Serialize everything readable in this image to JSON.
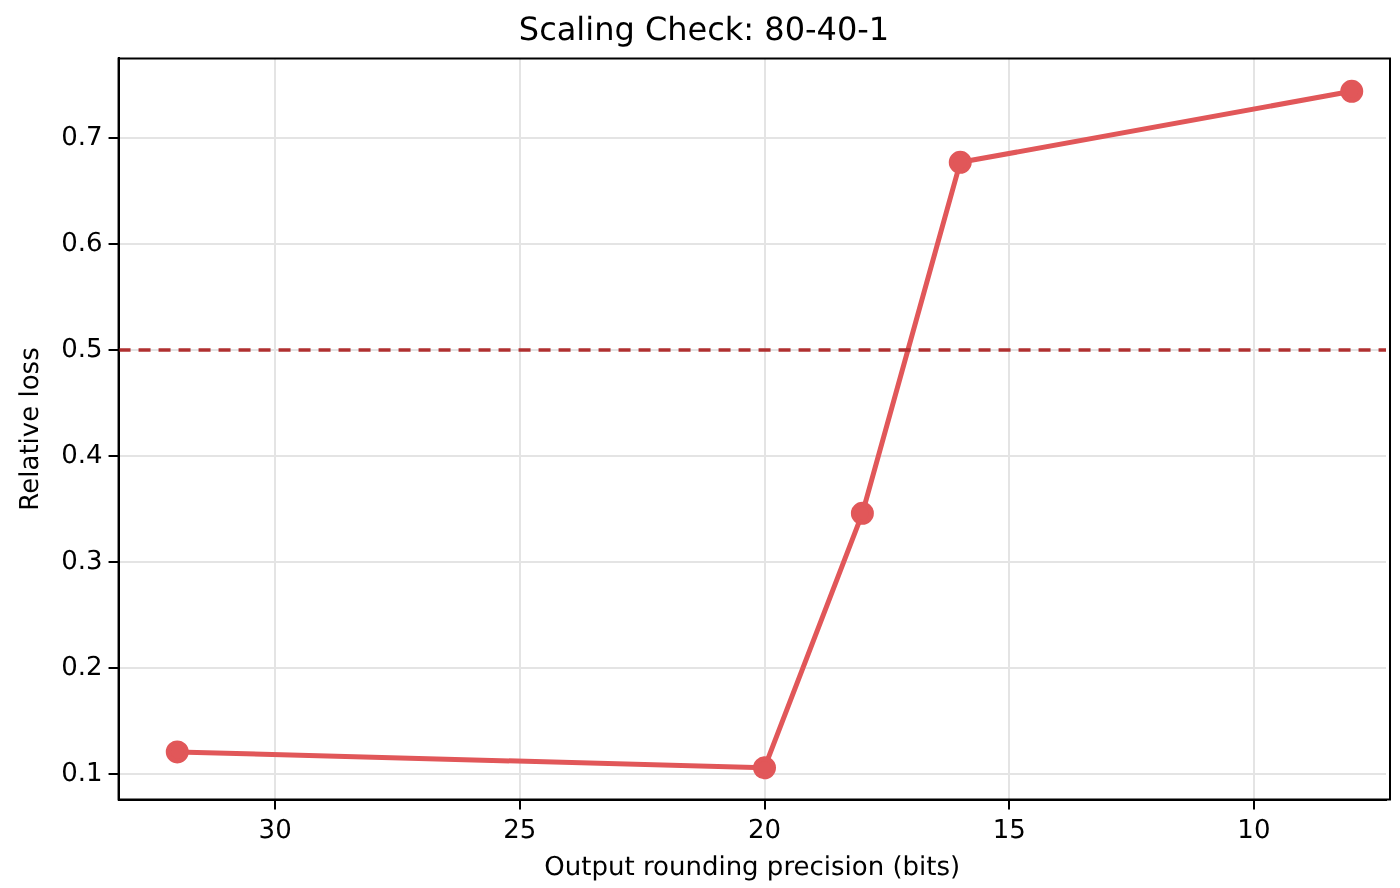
{
  "chart_data": {
    "type": "line",
    "title": "Scaling Check: 80-40-1",
    "xlabel": "Output rounding precision (bits)",
    "ylabel": "Relative loss",
    "x": [
      32,
      20,
      18,
      16,
      8
    ],
    "series": [
      {
        "color": "#e15759",
        "values": [
          0.121,
          0.106,
          0.346,
          0.677,
          0.744
        ]
      }
    ],
    "xlim": [
      33.2,
      7.3
    ],
    "xticks": [
      30,
      25,
      20,
      15,
      10
    ],
    "ylim": [
      0.076,
      0.775
    ],
    "yticks": [
      0.1,
      0.2,
      0.3,
      0.4,
      0.5,
      0.6,
      0.7
    ],
    "ref_lines": [
      {
        "axis": "y",
        "value": 0.5,
        "color": "#b03030",
        "line_style": "dashed"
      }
    ],
    "grid": true,
    "legend": false,
    "marker": "circle",
    "line_style": "solid"
  }
}
